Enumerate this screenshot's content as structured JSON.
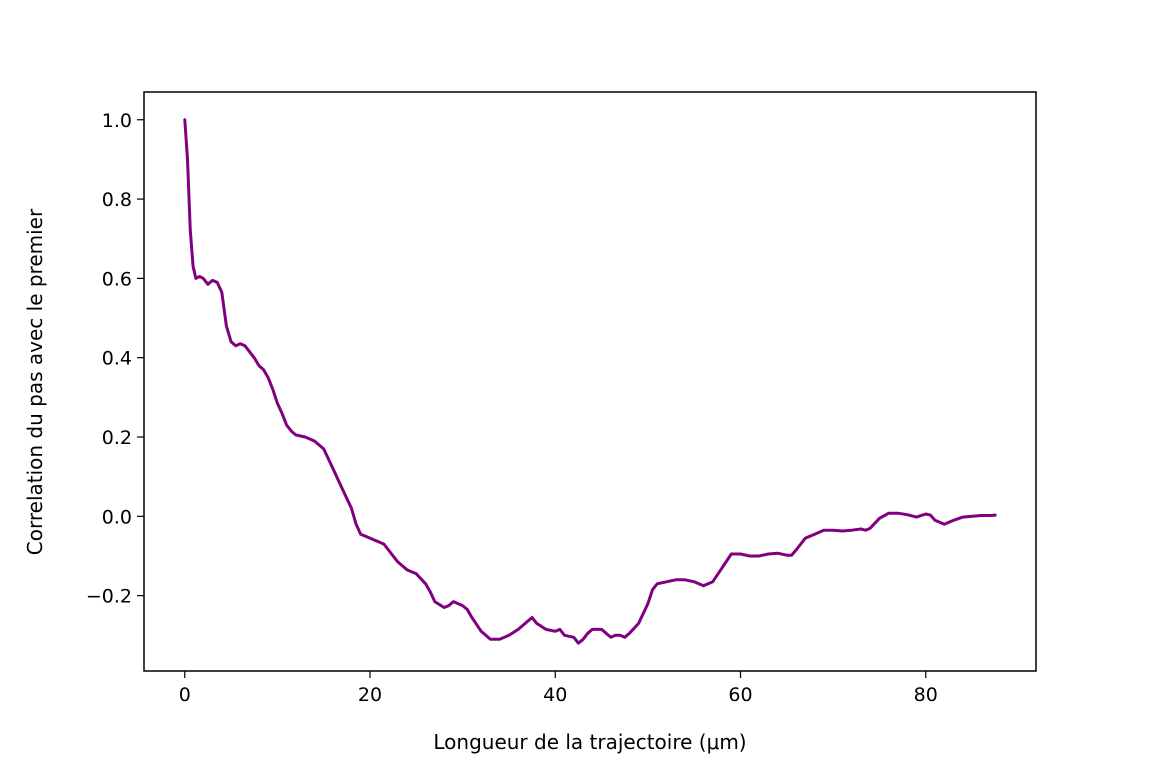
{
  "chart_data": {
    "type": "line",
    "title": "",
    "xlabel": "Longueur de la trajectoire (μm)",
    "ylabel": "Correlation du pas avec le premier",
    "xlim": [
      -4.4,
      91.9
    ],
    "ylim": [
      -0.39,
      1.07
    ],
    "xticks": [
      0,
      20,
      40,
      60,
      80
    ],
    "yticks": [
      -0.2,
      0.0,
      0.2,
      0.4,
      0.6,
      0.8,
      1.0
    ],
    "xtick_labels": [
      "0",
      "20",
      "40",
      "60",
      "80"
    ],
    "ytick_labels": [
      "−0.2",
      "0.0",
      "0.2",
      "0.4",
      "0.6",
      "0.8",
      "1.0"
    ],
    "grid": false,
    "legend": "none",
    "series": [
      {
        "color": "#800080",
        "x": [
          0,
          0.3,
          0.6,
          0.9,
          1.2,
          1.6,
          2.0,
          2.5,
          3.0,
          3.5,
          4.0,
          4.5,
          5.0,
          5.5,
          6.0,
          6.5,
          7.0,
          7.5,
          8.0,
          8.5,
          9.0,
          9.5,
          10.0,
          10.5,
          11.0,
          11.5,
          12.0,
          13.0,
          14.0,
          15.0,
          16.0,
          17.0,
          18.0,
          18.5,
          19.0,
          20.0,
          20.5,
          21.0,
          21.5,
          22.0,
          23.0,
          24.0,
          25.0,
          26.0,
          26.5,
          27.0,
          28.0,
          28.5,
          29.0,
          30.0,
          30.5,
          31.0,
          32.0,
          33.0,
          34.0,
          35.0,
          36.0,
          37.0,
          37.5,
          38.0,
          39.0,
          40.0,
          40.5,
          41.0,
          42.0,
          42.5,
          43.0,
          43.5,
          44.0,
          45.0,
          45.5,
          46.0,
          46.5,
          47.0,
          47.5,
          48.0,
          49.0,
          50.0,
          50.5,
          51.0,
          52.0,
          53.0,
          54.0,
          55.0,
          56.0,
          57.0,
          58.0,
          59.0,
          60.0,
          61.0,
          62.0,
          63.0,
          64.0,
          65.0,
          65.5,
          66.0,
          67.0,
          68.0,
          69.0,
          70.0,
          71.0,
          72.0,
          73.0,
          73.5,
          74.0,
          75.0,
          76.0,
          77.0,
          78.0,
          79.0,
          80.0,
          80.5,
          81.0,
          82.0,
          83.0,
          84.0,
          85.0,
          86.0,
          87.0,
          87.5
        ],
        "y": [
          1.0,
          0.9,
          0.72,
          0.63,
          0.6,
          0.605,
          0.6,
          0.585,
          0.595,
          0.59,
          0.565,
          0.48,
          0.44,
          0.43,
          0.435,
          0.43,
          0.415,
          0.4,
          0.38,
          0.37,
          0.35,
          0.32,
          0.285,
          0.26,
          0.23,
          0.215,
          0.205,
          0.2,
          0.19,
          0.17,
          0.12,
          0.07,
          0.02,
          -0.02,
          -0.045,
          -0.055,
          -0.06,
          -0.065,
          -0.07,
          -0.085,
          -0.115,
          -0.135,
          -0.145,
          -0.17,
          -0.19,
          -0.215,
          -0.23,
          -0.225,
          -0.215,
          -0.225,
          -0.235,
          -0.255,
          -0.29,
          -0.31,
          -0.31,
          -0.3,
          -0.285,
          -0.265,
          -0.255,
          -0.27,
          -0.285,
          -0.29,
          -0.285,
          -0.3,
          -0.305,
          -0.32,
          -0.31,
          -0.295,
          -0.285,
          -0.285,
          -0.295,
          -0.305,
          -0.3,
          -0.3,
          -0.305,
          -0.295,
          -0.27,
          -0.22,
          -0.185,
          -0.17,
          -0.165,
          -0.16,
          -0.16,
          -0.165,
          -0.175,
          -0.165,
          -0.13,
          -0.095,
          -0.095,
          -0.1,
          -0.1,
          -0.095,
          -0.093,
          -0.098,
          -0.098,
          -0.085,
          -0.055,
          -0.045,
          -0.035,
          -0.035,
          -0.037,
          -0.035,
          -0.032,
          -0.035,
          -0.03,
          -0.005,
          0.008,
          0.008,
          0.004,
          -0.002,
          0.006,
          0.003,
          -0.01,
          -0.02,
          -0.01,
          -0.002,
          0.0,
          0.002,
          0.002,
          0.003
        ]
      }
    ]
  }
}
